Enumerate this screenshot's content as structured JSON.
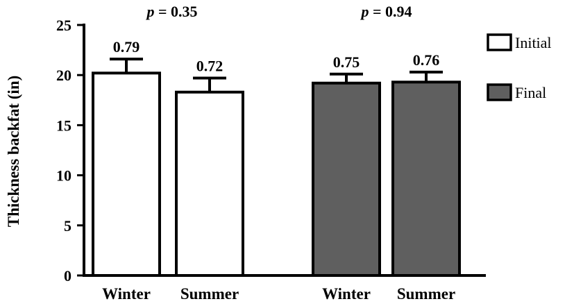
{
  "chart_data": {
    "type": "bar",
    "ylabel": "Thickness backfat (in)",
    "ylim": [
      0,
      25
    ],
    "yticks": [
      0,
      5,
      10,
      15,
      20,
      25
    ],
    "legend_position": "right",
    "groups": [
      {
        "p_prefix": "p",
        "p_value": "= 0.35",
        "series": "Initial",
        "bars": [
          {
            "category": "Winter",
            "value": 20.2,
            "error": 1.4,
            "label": "0.79"
          },
          {
            "category": "Summer",
            "value": 18.3,
            "error": 1.4,
            "label": "0.72"
          }
        ]
      },
      {
        "p_prefix": "p",
        "p_value": "= 0.94",
        "series": "Final",
        "bars": [
          {
            "category": "Winter",
            "value": 19.2,
            "error": 0.9,
            "label": "0.75"
          },
          {
            "category": "Summer",
            "value": 19.3,
            "error": 1.0,
            "label": "0.76"
          }
        ]
      }
    ],
    "series": [
      {
        "name": "Initial",
        "color": "#ffffff"
      },
      {
        "name": "Final",
        "color": "#5f5f5f"
      }
    ]
  }
}
